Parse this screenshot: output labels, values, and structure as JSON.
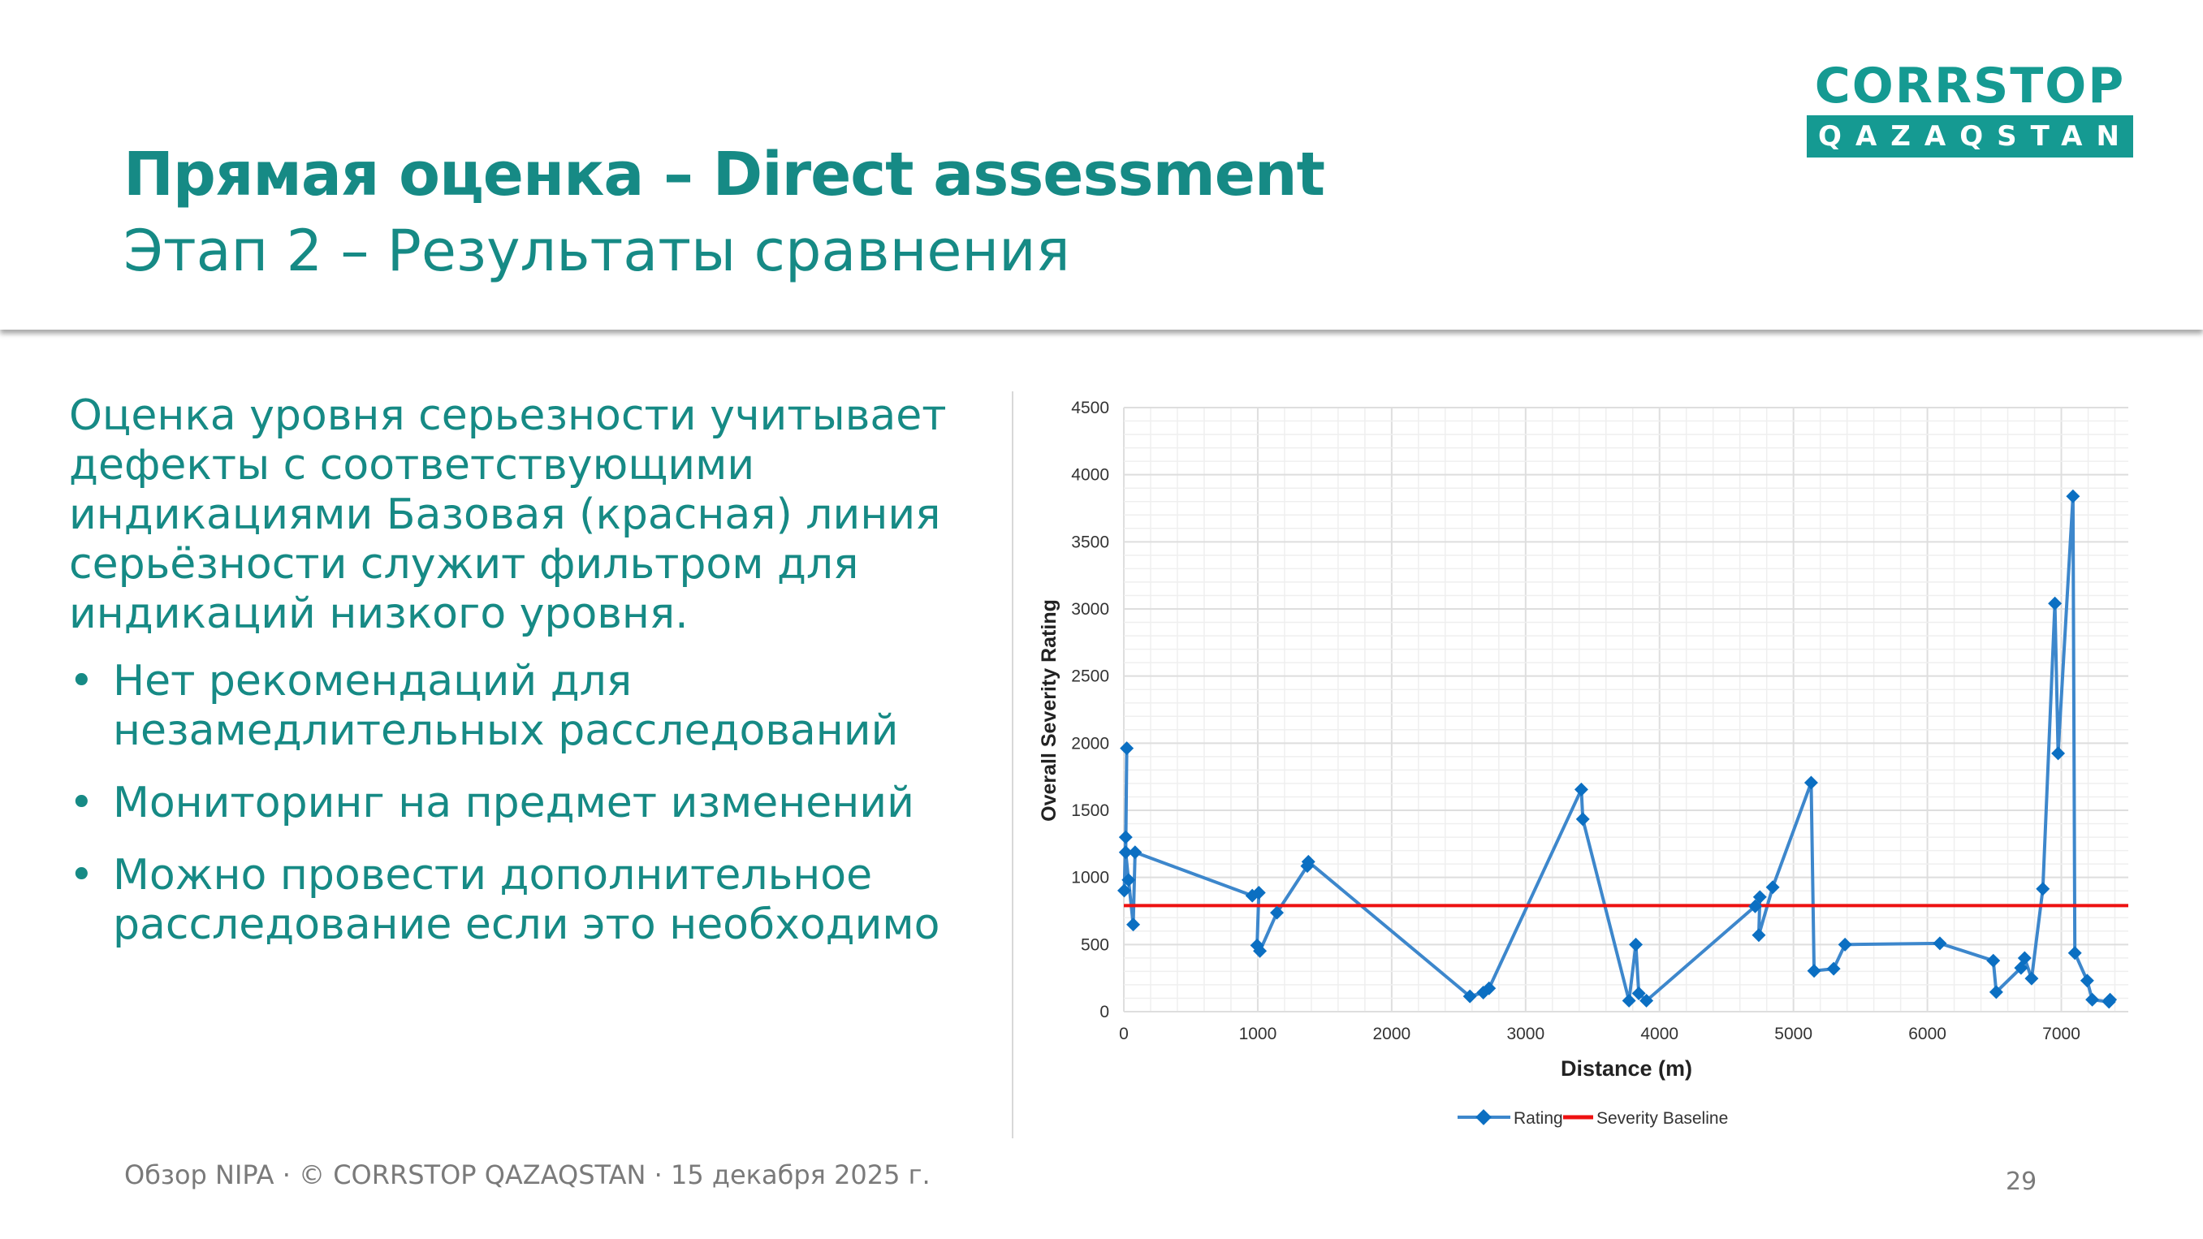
{
  "header": {
    "title": "Прямая оценка – Direct assessment",
    "subtitle": "Этап 2 – Результаты сравнения"
  },
  "logo": {
    "top": "CORRSTOP",
    "bottom": "QAZAQSTAN",
    "color": "#159a92"
  },
  "content": {
    "paragraph": "Оценка уровня серьезности учитывает дефекты с соответствующими индикациями Базовая (красная) линия серьёзности служит фильтром для индикаций низкого уровня.",
    "bullets": [
      "Нет рекомендаций для незамедлительных расследований",
      "Мониторинг на предмет изменений",
      "Можно провести дополнительное расследование если это необходимо"
    ]
  },
  "chart_data": {
    "type": "line",
    "xlabel": "Distance (m)",
    "ylabel": "Overall Severity Rating",
    "xlim": [
      0,
      7500
    ],
    "ylim": [
      0,
      4500
    ],
    "xticks": [
      0,
      1000,
      2000,
      3000,
      4000,
      5000,
      6000,
      7000
    ],
    "yticks": [
      0,
      500,
      1000,
      1500,
      2000,
      2500,
      3000,
      3500,
      4000,
      4500
    ],
    "grid": true,
    "legend": "bottom",
    "series": [
      {
        "name": "Rating",
        "color": "#3d87cc",
        "marker": "diamond",
        "points": [
          [
            3,
            902
          ],
          [
            14,
            1300
          ],
          [
            22,
            1962
          ],
          [
            14,
            1187
          ],
          [
            35,
            981
          ],
          [
            70,
            649
          ],
          [
            84,
            1187
          ],
          [
            959,
            864
          ],
          [
            1008,
            886
          ],
          [
            995,
            494
          ],
          [
            1016,
            452
          ],
          [
            1143,
            737
          ],
          [
            1370,
            1085
          ],
          [
            1378,
            1117
          ],
          [
            2584,
            114
          ],
          [
            2684,
            142
          ],
          [
            2727,
            174
          ],
          [
            3416,
            1655
          ],
          [
            3427,
            1434
          ],
          [
            3772,
            82
          ],
          [
            3823,
            500
          ],
          [
            3845,
            136
          ],
          [
            3902,
            82
          ],
          [
            4714,
            785
          ],
          [
            4749,
            854
          ],
          [
            4741,
            570
          ],
          [
            4845,
            927
          ],
          [
            5132,
            1706
          ],
          [
            5154,
            304
          ],
          [
            5300,
            320
          ],
          [
            5385,
            500
          ],
          [
            6093,
            509
          ],
          [
            6492,
            380
          ],
          [
            6514,
            146
          ],
          [
            6699,
            326
          ],
          [
            6726,
            399
          ],
          [
            6778,
            247
          ],
          [
            6862,
            915
          ],
          [
            6952,
            3041
          ],
          [
            6976,
            1924
          ],
          [
            7087,
            3839
          ],
          [
            7101,
            437
          ],
          [
            7193,
            231
          ],
          [
            7231,
            89
          ],
          [
            7356,
            73
          ],
          [
            7364,
            89
          ]
        ]
      },
      {
        "name": "Severity Baseline",
        "color": "#ee1111",
        "value": 790
      }
    ]
  },
  "footer": {
    "text": "Обзор NIPA · © CORRSTOP QAZAQSTAN · 15 декабря 2025 г.",
    "page": "29"
  }
}
